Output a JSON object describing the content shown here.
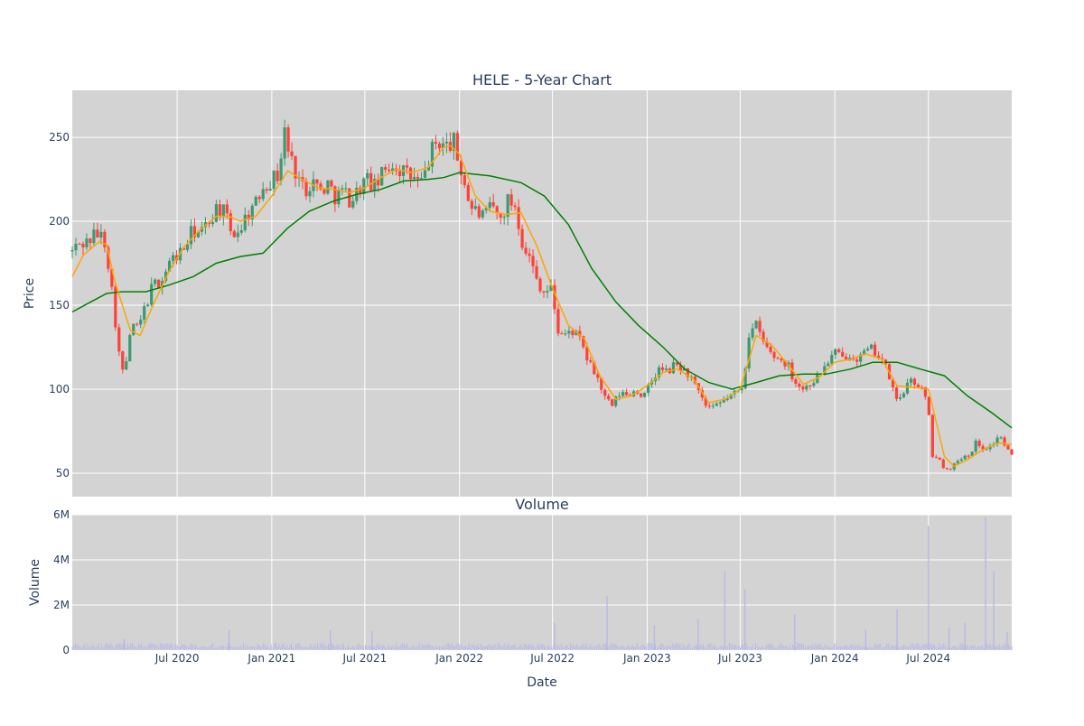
{
  "colors": {
    "panel_bg": "#d3d3d3",
    "grid": "#ffffff",
    "increasing": "#3d9970",
    "decreasing": "#ff4136",
    "ma_short": "#ffa500",
    "ma_long": "#008000",
    "volume": "#b8b8e8",
    "text": "#2a3f5f"
  },
  "chart_data": [
    {
      "type": "candlestick",
      "title": "HELE - 5-Year Chart",
      "xlabel": "",
      "ylabel": "Price",
      "x_range": [
        "2019-12-10",
        "2024-12-10"
      ],
      "ylim": [
        36,
        278
      ],
      "y_ticks": [
        50,
        100,
        150,
        200,
        250
      ],
      "grid": true,
      "price_path": [
        [
          "2019-12-10",
          182
        ],
        [
          "2019-12-20",
          186
        ],
        [
          "2020-01-10",
          188
        ],
        [
          "2020-01-25",
          193
        ],
        [
          "2020-02-10",
          190
        ],
        [
          "2020-02-20",
          172
        ],
        [
          "2020-03-05",
          135
        ],
        [
          "2020-03-15",
          108
        ],
        [
          "2020-03-25",
          118
        ],
        [
          "2020-04-05",
          140
        ],
        [
          "2020-04-15",
          135
        ],
        [
          "2020-05-01",
          150
        ],
        [
          "2020-05-15",
          162
        ],
        [
          "2020-06-01",
          165
        ],
        [
          "2020-06-15",
          175
        ],
        [
          "2020-07-01",
          180
        ],
        [
          "2020-07-15",
          184
        ],
        [
          "2020-08-01",
          195
        ],
        [
          "2020-08-15",
          192
        ],
        [
          "2020-09-01",
          200
        ],
        [
          "2020-09-15",
          208
        ],
        [
          "2020-10-01",
          205
        ],
        [
          "2020-10-15",
          192
        ],
        [
          "2020-11-01",
          196
        ],
        [
          "2020-11-15",
          205
        ],
        [
          "2020-12-01",
          210
        ],
        [
          "2020-12-15",
          222
        ],
        [
          "2021-01-01",
          225
        ],
        [
          "2021-01-15",
          228
        ],
        [
          "2021-01-25",
          255
        ],
        [
          "2021-02-05",
          238
        ],
        [
          "2021-02-20",
          228
        ],
        [
          "2021-03-05",
          218
        ],
        [
          "2021-03-20",
          225
        ],
        [
          "2021-04-05",
          218
        ],
        [
          "2021-04-20",
          222
        ],
        [
          "2021-05-05",
          215
        ],
        [
          "2021-05-20",
          218
        ],
        [
          "2021-06-05",
          212
        ],
        [
          "2021-06-20",
          220
        ],
        [
          "2021-07-05",
          225
        ],
        [
          "2021-07-20",
          220
        ],
        [
          "2021-08-05",
          228
        ],
        [
          "2021-08-20",
          235
        ],
        [
          "2021-09-05",
          232
        ],
        [
          "2021-09-20",
          228
        ],
        [
          "2021-10-05",
          225
        ],
        [
          "2021-10-20",
          222
        ],
        [
          "2021-11-05",
          240
        ],
        [
          "2021-11-20",
          248
        ],
        [
          "2021-12-05",
          244
        ],
        [
          "2021-12-20",
          248
        ],
        [
          "2022-01-01",
          232
        ],
        [
          "2022-01-10",
          225
        ],
        [
          "2022-01-20",
          210
        ],
        [
          "2022-02-05",
          205
        ],
        [
          "2022-02-20",
          202
        ],
        [
          "2022-03-05",
          210
        ],
        [
          "2022-03-20",
          200
        ],
        [
          "2022-04-05",
          212
        ],
        [
          "2022-04-20",
          210
        ],
        [
          "2022-05-01",
          190
        ],
        [
          "2022-05-15",
          180
        ],
        [
          "2022-06-01",
          165
        ],
        [
          "2022-06-15",
          158
        ],
        [
          "2022-07-01",
          160
        ],
        [
          "2022-07-10",
          135
        ],
        [
          "2022-07-25",
          132
        ],
        [
          "2022-08-10",
          135
        ],
        [
          "2022-08-25",
          128
        ],
        [
          "2022-09-10",
          115
        ],
        [
          "2022-09-25",
          108
        ],
        [
          "2022-10-10",
          95
        ],
        [
          "2022-10-25",
          90
        ],
        [
          "2022-11-10",
          98
        ],
        [
          "2022-11-25",
          96
        ],
        [
          "2022-12-10",
          100
        ],
        [
          "2022-12-25",
          95
        ],
        [
          "2023-01-10",
          105
        ],
        [
          "2023-01-25",
          112
        ],
        [
          "2023-02-10",
          110
        ],
        [
          "2023-02-25",
          115
        ],
        [
          "2023-03-10",
          112
        ],
        [
          "2023-03-25",
          108
        ],
        [
          "2023-04-10",
          98
        ],
        [
          "2023-04-25",
          90
        ],
        [
          "2023-05-10",
          88
        ],
        [
          "2023-05-25",
          92
        ],
        [
          "2023-06-10",
          96
        ],
        [
          "2023-06-25",
          98
        ],
        [
          "2023-07-05",
          102
        ],
        [
          "2023-07-10",
          110
        ],
        [
          "2023-07-15",
          132
        ],
        [
          "2023-08-01",
          138
        ],
        [
          "2023-08-15",
          128
        ],
        [
          "2023-09-01",
          120
        ],
        [
          "2023-09-15",
          118
        ],
        [
          "2023-10-01",
          115
        ],
        [
          "2023-10-15",
          105
        ],
        [
          "2023-11-01",
          100
        ],
        [
          "2023-11-15",
          104
        ],
        [
          "2023-12-01",
          108
        ],
        [
          "2023-12-15",
          115
        ],
        [
          "2024-01-01",
          122
        ],
        [
          "2024-01-15",
          118
        ],
        [
          "2024-02-01",
          122
        ],
        [
          "2024-02-15",
          118
        ],
        [
          "2024-03-01",
          122
        ],
        [
          "2024-03-15",
          124
        ],
        [
          "2024-04-01",
          118
        ],
        [
          "2024-04-15",
          108
        ],
        [
          "2024-05-01",
          92
        ],
        [
          "2024-05-15",
          100
        ],
        [
          "2024-06-01",
          105
        ],
        [
          "2024-06-15",
          102
        ],
        [
          "2024-07-01",
          90
        ],
        [
          "2024-07-05",
          62
        ],
        [
          "2024-07-20",
          58
        ],
        [
          "2024-08-05",
          52
        ],
        [
          "2024-08-20",
          55
        ],
        [
          "2024-09-05",
          60
        ],
        [
          "2024-09-20",
          62
        ],
        [
          "2024-10-01",
          68
        ],
        [
          "2024-10-15",
          65
        ],
        [
          "2024-11-01",
          66
        ],
        [
          "2024-11-15",
          73
        ],
        [
          "2024-12-01",
          64
        ],
        [
          "2024-12-10",
          60
        ]
      ],
      "moving_average_short": [
        [
          "2019-12-10",
          167
        ],
        [
          "2020-01-01",
          180
        ],
        [
          "2020-02-01",
          188
        ],
        [
          "2020-02-15",
          186
        ],
        [
          "2020-03-01",
          165
        ],
        [
          "2020-04-01",
          135
        ],
        [
          "2020-04-20",
          132
        ],
        [
          "2020-05-15",
          150
        ],
        [
          "2020-06-15",
          170
        ],
        [
          "2020-07-15",
          185
        ],
        [
          "2020-08-15",
          195
        ],
        [
          "2020-09-15",
          203
        ],
        [
          "2020-10-10",
          203
        ],
        [
          "2020-11-01",
          200
        ],
        [
          "2020-12-01",
          203
        ],
        [
          "2021-01-01",
          215
        ],
        [
          "2021-02-01",
          230
        ],
        [
          "2021-03-01",
          225
        ],
        [
          "2021-04-01",
          220
        ],
        [
          "2021-05-01",
          219
        ],
        [
          "2021-06-01",
          217
        ],
        [
          "2021-07-01",
          220
        ],
        [
          "2021-08-01",
          226
        ],
        [
          "2021-09-01",
          231
        ],
        [
          "2021-10-01",
          229
        ],
        [
          "2021-11-01",
          232
        ],
        [
          "2021-12-01",
          244
        ],
        [
          "2021-12-15",
          245
        ],
        [
          "2022-01-01",
          240
        ],
        [
          "2022-02-01",
          215
        ],
        [
          "2022-03-01",
          206
        ],
        [
          "2022-04-01",
          204
        ],
        [
          "2022-05-01",
          205
        ],
        [
          "2022-06-01",
          185
        ],
        [
          "2022-07-01",
          160
        ],
        [
          "2022-08-01",
          138
        ],
        [
          "2022-09-01",
          130
        ],
        [
          "2022-10-01",
          108
        ],
        [
          "2022-11-01",
          94
        ],
        [
          "2022-12-01",
          96
        ],
        [
          "2023-01-01",
          102
        ],
        [
          "2023-02-01",
          110
        ],
        [
          "2023-03-01",
          112
        ],
        [
          "2023-04-01",
          106
        ],
        [
          "2023-05-01",
          92
        ],
        [
          "2023-06-01",
          94
        ],
        [
          "2023-07-01",
          100
        ],
        [
          "2023-08-01",
          132
        ],
        [
          "2023-09-01",
          126
        ],
        [
          "2023-10-01",
          115
        ],
        [
          "2023-11-01",
          103
        ],
        [
          "2023-12-01",
          107
        ],
        [
          "2024-01-01",
          116
        ],
        [
          "2024-02-01",
          118
        ],
        [
          "2024-03-01",
          121
        ],
        [
          "2024-04-01",
          118
        ],
        [
          "2024-05-01",
          102
        ],
        [
          "2024-06-01",
          101
        ],
        [
          "2024-07-01",
          100
        ],
        [
          "2024-08-01",
          60
        ],
        [
          "2024-08-20",
          54
        ],
        [
          "2024-09-15",
          58
        ],
        [
          "2024-10-15",
          64
        ],
        [
          "2024-11-15",
          68
        ],
        [
          "2024-12-10",
          67
        ]
      ],
      "moving_average_long": [
        [
          "2019-12-10",
          146
        ],
        [
          "2020-01-15",
          152
        ],
        [
          "2020-02-15",
          157
        ],
        [
          "2020-03-15",
          158
        ],
        [
          "2020-05-01",
          158
        ],
        [
          "2020-06-15",
          162
        ],
        [
          "2020-08-01",
          167
        ],
        [
          "2020-09-15",
          175
        ],
        [
          "2020-11-01",
          179
        ],
        [
          "2020-12-15",
          181
        ],
        [
          "2021-02-01",
          196
        ],
        [
          "2021-03-15",
          206
        ],
        [
          "2021-05-01",
          212
        ],
        [
          "2021-06-15",
          216
        ],
        [
          "2021-08-01",
          219
        ],
        [
          "2021-09-15",
          224
        ],
        [
          "2021-11-01",
          225
        ],
        [
          "2021-12-01",
          226
        ],
        [
          "2022-01-01",
          229
        ],
        [
          "2022-03-01",
          227
        ],
        [
          "2022-05-01",
          223
        ],
        [
          "2022-06-15",
          215
        ],
        [
          "2022-08-01",
          198
        ],
        [
          "2022-09-15",
          172
        ],
        [
          "2022-11-01",
          152
        ],
        [
          "2022-12-15",
          138
        ],
        [
          "2023-02-01",
          125
        ],
        [
          "2023-03-15",
          112
        ],
        [
          "2023-05-01",
          104
        ],
        [
          "2023-06-15",
          100
        ],
        [
          "2023-08-01",
          104
        ],
        [
          "2023-09-15",
          108
        ],
        [
          "2023-11-01",
          109
        ],
        [
          "2023-12-15",
          109
        ],
        [
          "2024-02-01",
          112
        ],
        [
          "2024-03-15",
          116
        ],
        [
          "2024-05-01",
          116
        ],
        [
          "2024-06-15",
          112
        ],
        [
          "2024-08-01",
          108
        ],
        [
          "2024-09-15",
          96
        ],
        [
          "2024-11-01",
          86
        ],
        [
          "2024-12-10",
          77
        ]
      ]
    },
    {
      "type": "bar",
      "title": "Volume",
      "xlabel": "Date",
      "ylabel": "Volume",
      "ylim": [
        0,
        6000000
      ],
      "y_ticks": [
        0,
        2000000,
        4000000,
        6000000
      ],
      "y_tick_labels": [
        "0",
        "2M",
        "4M",
        "6M"
      ],
      "x_ticks": [
        "2020-07-01",
        "2021-01-01",
        "2021-07-01",
        "2022-01-01",
        "2022-07-01",
        "2023-01-01",
        "2023-07-01",
        "2024-01-01",
        "2024-07-01"
      ],
      "x_tick_labels": [
        "Jul 2020",
        "Jan 2021",
        "Jul 2021",
        "Jan 2022",
        "Jul 2022",
        "Jan 2023",
        "Jul 2023",
        "Jan 2024",
        "Jul 2024"
      ],
      "baseline_volume": 250000,
      "volume_spikes": [
        [
          "2020-03-20",
          500000
        ],
        [
          "2020-10-10",
          900000
        ],
        [
          "2021-04-25",
          900000
        ],
        [
          "2021-07-15",
          850000
        ],
        [
          "2022-07-05",
          1200000
        ],
        [
          "2022-10-15",
          2400000
        ],
        [
          "2023-01-15",
          1100000
        ],
        [
          "2023-04-10",
          1400000
        ],
        [
          "2023-06-01",
          3500000
        ],
        [
          "2023-07-10",
          2700000
        ],
        [
          "2023-10-15",
          1600000
        ],
        [
          "2024-03-01",
          900000
        ],
        [
          "2024-05-01",
          1800000
        ],
        [
          "2024-07-01",
          5500000
        ],
        [
          "2024-08-10",
          1000000
        ],
        [
          "2024-09-10",
          1200000
        ],
        [
          "2024-10-20",
          5900000
        ],
        [
          "2024-11-05",
          3500000
        ],
        [
          "2024-12-01",
          800000
        ]
      ]
    }
  ]
}
